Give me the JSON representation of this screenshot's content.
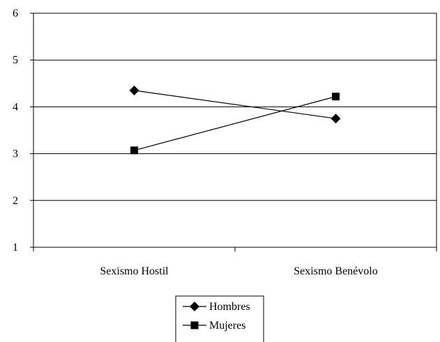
{
  "chart_data": {
    "type": "line",
    "title": "",
    "xlabel": "",
    "ylabel": "",
    "categories": [
      "Sexismo Hostil",
      "Sexismo Benévolo"
    ],
    "series": [
      {
        "name": "Hombres",
        "marker": "diamond",
        "values": [
          4.35,
          3.75
        ]
      },
      {
        "name": "Mujeres",
        "marker": "square",
        "values": [
          3.07,
          4.22
        ]
      }
    ],
    "ylim": [
      1,
      6
    ],
    "yticks": [
      1,
      2,
      3,
      4,
      5,
      6
    ],
    "grid": true,
    "legend_position": "bottom",
    "colors": {
      "line": "#000000",
      "grid": "#000000",
      "background": "#ffffff"
    }
  }
}
